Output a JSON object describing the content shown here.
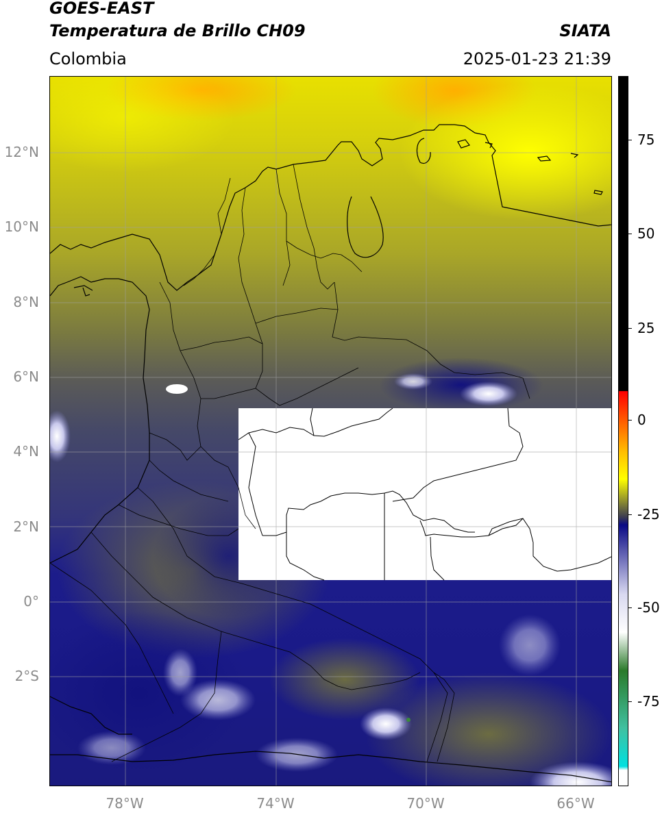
{
  "header": {
    "satellite": "GOES-EAST",
    "product": "Temperatura de Brillo CH09",
    "brand": "SIATA",
    "region": "Colombia",
    "timestamp": "2025-01-23 21:39"
  },
  "map": {
    "lat_labels": [
      "12°N",
      "10°N",
      "8°N",
      "6°N",
      "4°N",
      "2°N",
      "0°",
      "2°S"
    ],
    "lon_labels": [
      "78°W",
      "74°W",
      "70°W",
      "66°W"
    ],
    "missing_data_color": "#ffffff"
  },
  "colorbar": {
    "ticks": [
      "75",
      "50",
      "25",
      "0",
      "-25",
      "-50",
      "-75"
    ],
    "stops": [
      {
        "value": 90,
        "color": "#000000"
      },
      {
        "value": 8,
        "color": "#000000"
      },
      {
        "value": 7.9,
        "color": "#ff0000"
      },
      {
        "value": -8,
        "color": "#ffbf00"
      },
      {
        "value": -15,
        "color": "#ffff00"
      },
      {
        "value": -25,
        "color": "#3a3a52"
      },
      {
        "value": -27,
        "color": "#0a0a85"
      },
      {
        "value": -45,
        "color": "#d8d8f0"
      },
      {
        "value": -55,
        "color": "#ffffff"
      },
      {
        "value": -65,
        "color": "#2a7a2a"
      },
      {
        "value": -80,
        "color": "#40c0a0"
      },
      {
        "value": -90,
        "color": "#00e0e0"
      },
      {
        "value": -91,
        "color": "#ffffff"
      },
      {
        "value": -95,
        "color": "#ffffff"
      }
    ]
  }
}
